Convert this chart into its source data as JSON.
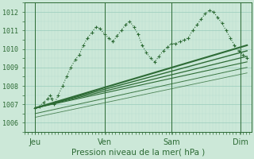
{
  "xlabel": "Pression niveau de la mer( hPa )",
  "bg_color": "#cce8d8",
  "plot_bg_color": "#cce8d8",
  "grid_major_color": "#99ccbb",
  "grid_minor_color": "#b8ddd0",
  "line_color": "#2d6b35",
  "tick_color": "#2d6b35",
  "ylim": [
    1005.5,
    1012.5
  ],
  "xlim": [
    0.0,
    1.08
  ],
  "yticks": [
    1006,
    1007,
    1008,
    1009,
    1010,
    1011,
    1012
  ],
  "day_positions": [
    0.05,
    0.38,
    0.7,
    1.03
  ],
  "days": [
    "Jeu",
    "Ven",
    "Sam",
    "Dim"
  ],
  "jagged_x": [
    0.05,
    0.07,
    0.09,
    0.11,
    0.12,
    0.13,
    0.14,
    0.16,
    0.18,
    0.2,
    0.22,
    0.24,
    0.26,
    0.28,
    0.3,
    0.32,
    0.34,
    0.36,
    0.38,
    0.4,
    0.42,
    0.44,
    0.46,
    0.48,
    0.5,
    0.52,
    0.54,
    0.56,
    0.58,
    0.6,
    0.62,
    0.64,
    0.66,
    0.68,
    0.7,
    0.72,
    0.74,
    0.76,
    0.78,
    0.8,
    0.82,
    0.84,
    0.86,
    0.88,
    0.9,
    0.92,
    0.94,
    0.96,
    0.98,
    1.0,
    1.02,
    1.04,
    1.06
  ],
  "jagged_y": [
    1006.8,
    1006.9,
    1007.1,
    1007.3,
    1007.5,
    1007.3,
    1007.0,
    1007.5,
    1008.0,
    1008.5,
    1009.0,
    1009.4,
    1009.7,
    1010.2,
    1010.6,
    1010.9,
    1011.2,
    1011.1,
    1010.8,
    1010.6,
    1010.4,
    1010.7,
    1011.0,
    1011.3,
    1011.5,
    1011.2,
    1010.8,
    1010.2,
    1009.8,
    1009.5,
    1009.3,
    1009.6,
    1009.9,
    1010.1,
    1010.3,
    1010.3,
    1010.4,
    1010.5,
    1010.6,
    1011.0,
    1011.3,
    1011.6,
    1011.9,
    1012.1,
    1012.0,
    1011.7,
    1011.4,
    1011.0,
    1010.6,
    1010.2,
    1009.9,
    1009.7,
    1009.5
  ],
  "fan_lines": [
    {
      "x": [
        0.05,
        1.06
      ],
      "y": [
        1006.8,
        1010.2
      ],
      "lw": 1.5,
      "alpha": 1.0
    },
    {
      "x": [
        0.05,
        1.06
      ],
      "y": [
        1006.8,
        1009.9
      ],
      "lw": 1.0,
      "alpha": 1.0
    },
    {
      "x": [
        0.05,
        1.06
      ],
      "y": [
        1006.8,
        1009.6
      ],
      "lw": 0.9,
      "alpha": 1.0
    },
    {
      "x": [
        0.05,
        1.06
      ],
      "y": [
        1006.8,
        1009.3
      ],
      "lw": 0.8,
      "alpha": 1.0
    },
    {
      "x": [
        0.05,
        1.06
      ],
      "y": [
        1006.5,
        1009.0
      ],
      "lw": 0.7,
      "alpha": 0.9
    },
    {
      "x": [
        0.05,
        1.06
      ],
      "y": [
        1006.3,
        1008.7
      ],
      "lw": 0.6,
      "alpha": 0.8
    }
  ]
}
